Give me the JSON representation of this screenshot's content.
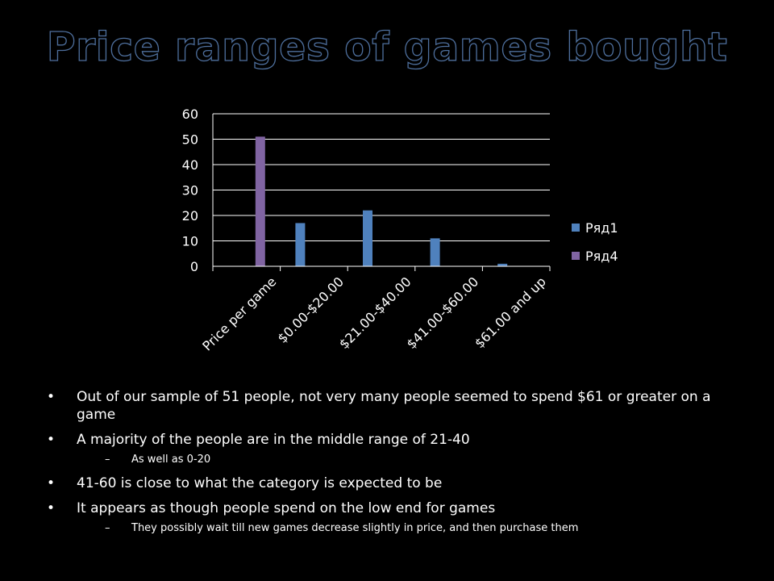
{
  "slide": {
    "title": "Price ranges of games bought",
    "bullets": [
      {
        "level": 1,
        "text": "Out of our sample of 51 people, not very many people seemed to spend $61 or greater on a game"
      },
      {
        "level": 1,
        "text": "A majority of the people are in the middle range of 21-40"
      },
      {
        "level": 2,
        "text": "As well as 0-20"
      },
      {
        "level": 1,
        "text": "41-60 is close to what the category is expected to be"
      },
      {
        "level": 1,
        "text": "It appears as though people spend on the low end for games"
      },
      {
        "level": 2,
        "text": "They possibly wait till new games decrease slightly in price, and then purchase them"
      }
    ]
  },
  "chart_data": {
    "type": "bar",
    "title": "",
    "xlabel": "",
    "ylabel": "",
    "categories": [
      "Price per game",
      "$0.00-$20.00",
      "$21.00-$40.00",
      "$41.00-$60.00",
      "$61.00 and up"
    ],
    "series": [
      {
        "name": "Ряд1",
        "values": [
          null,
          17,
          22,
          11,
          1
        ],
        "color": "#4f81bd"
      },
      {
        "name": "Ряд4",
        "values": [
          51,
          null,
          null,
          null,
          null
        ],
        "color": "#8064a2"
      }
    ],
    "ylim": [
      0,
      60
    ],
    "yticks": [
      0,
      10,
      20,
      30,
      40,
      50,
      60
    ],
    "grid": true,
    "legend": "right"
  }
}
